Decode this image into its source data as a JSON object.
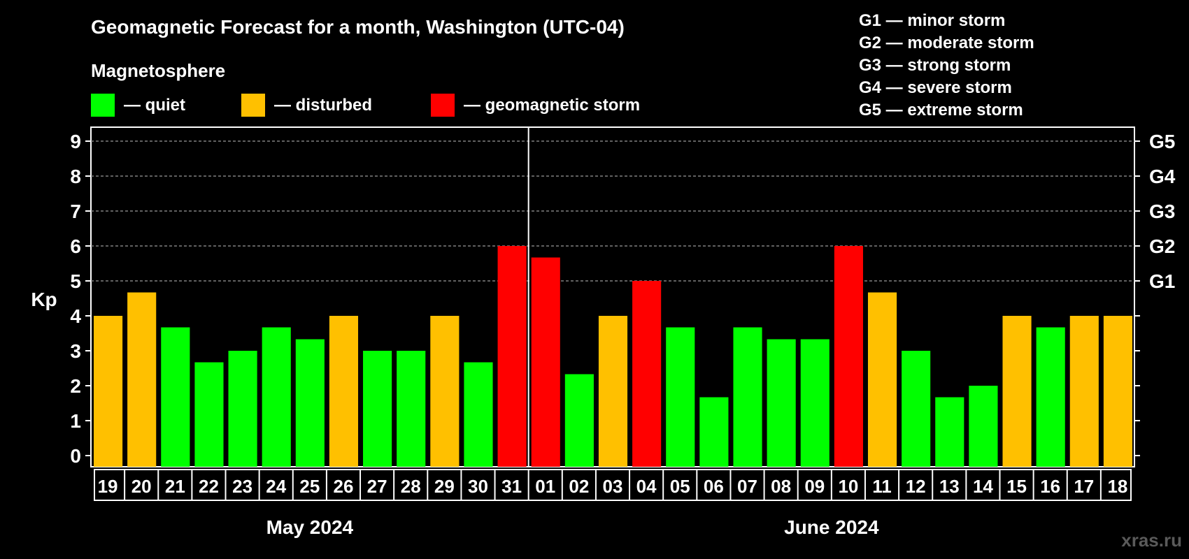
{
  "page": {
    "title": "Geomagnetic Forecast for a month, Washington (UTC-04)",
    "watermark": "xras.ru"
  },
  "legend": {
    "heading": "Magnetosphere",
    "items": [
      {
        "label": "— quiet",
        "color": "#00ff00"
      },
      {
        "label": "— disturbed",
        "color": "#ffc000"
      },
      {
        "label": "— geomagnetic storm",
        "color": "#ff0000"
      }
    ],
    "storm_levels": [
      "G1 — minor storm",
      "G2 — moderate storm",
      "G3 — strong storm",
      "G4 — severe storm",
      "G5 — extreme storm"
    ]
  },
  "chart_data": {
    "type": "bar",
    "title": "Geomagnetic Forecast for a month, Washington (UTC-04)",
    "ylabel": "Kp",
    "ylim": [
      0,
      9
    ],
    "yticks": [
      "0",
      "1",
      "2",
      "3",
      "4",
      "5",
      "6",
      "7",
      "8",
      "9"
    ],
    "right_axis_labels": [
      {
        "value": 5,
        "label": "G1"
      },
      {
        "value": 6,
        "label": "G2"
      },
      {
        "value": 7,
        "label": "G3"
      },
      {
        "value": 8,
        "label": "G4"
      },
      {
        "value": 9,
        "label": "G5"
      }
    ],
    "grid": "horizontal dashed at Kp 5–9",
    "months": [
      {
        "label": "May 2024",
        "days": 13
      },
      {
        "label": "June 2024",
        "days": 18
      }
    ],
    "categories": [
      "19",
      "20",
      "21",
      "22",
      "23",
      "24",
      "25",
      "26",
      "27",
      "28",
      "29",
      "30",
      "31",
      "01",
      "02",
      "03",
      "04",
      "05",
      "06",
      "07",
      "08",
      "09",
      "10",
      "11",
      "12",
      "13",
      "14",
      "15",
      "16",
      "17",
      "18"
    ],
    "values": [
      4,
      4.67,
      3.67,
      2.67,
      3,
      3.67,
      3.33,
      4,
      3,
      3,
      4,
      2.67,
      6,
      5.67,
      2.33,
      4,
      5,
      3.67,
      1.67,
      3.67,
      3.33,
      3.33,
      6,
      4.67,
      3,
      1.67,
      2,
      4,
      3.67,
      4,
      4
    ],
    "colors": [
      "#ffc000",
      "#ffc000",
      "#00ff00",
      "#00ff00",
      "#00ff00",
      "#00ff00",
      "#00ff00",
      "#ffc000",
      "#00ff00",
      "#00ff00",
      "#ffc000",
      "#00ff00",
      "#ff0000",
      "#ff0000",
      "#00ff00",
      "#ffc000",
      "#ff0000",
      "#00ff00",
      "#00ff00",
      "#00ff00",
      "#00ff00",
      "#00ff00",
      "#ff0000",
      "#ffc000",
      "#00ff00",
      "#00ff00",
      "#00ff00",
      "#ffc000",
      "#00ff00",
      "#ffc000",
      "#ffc000"
    ]
  }
}
